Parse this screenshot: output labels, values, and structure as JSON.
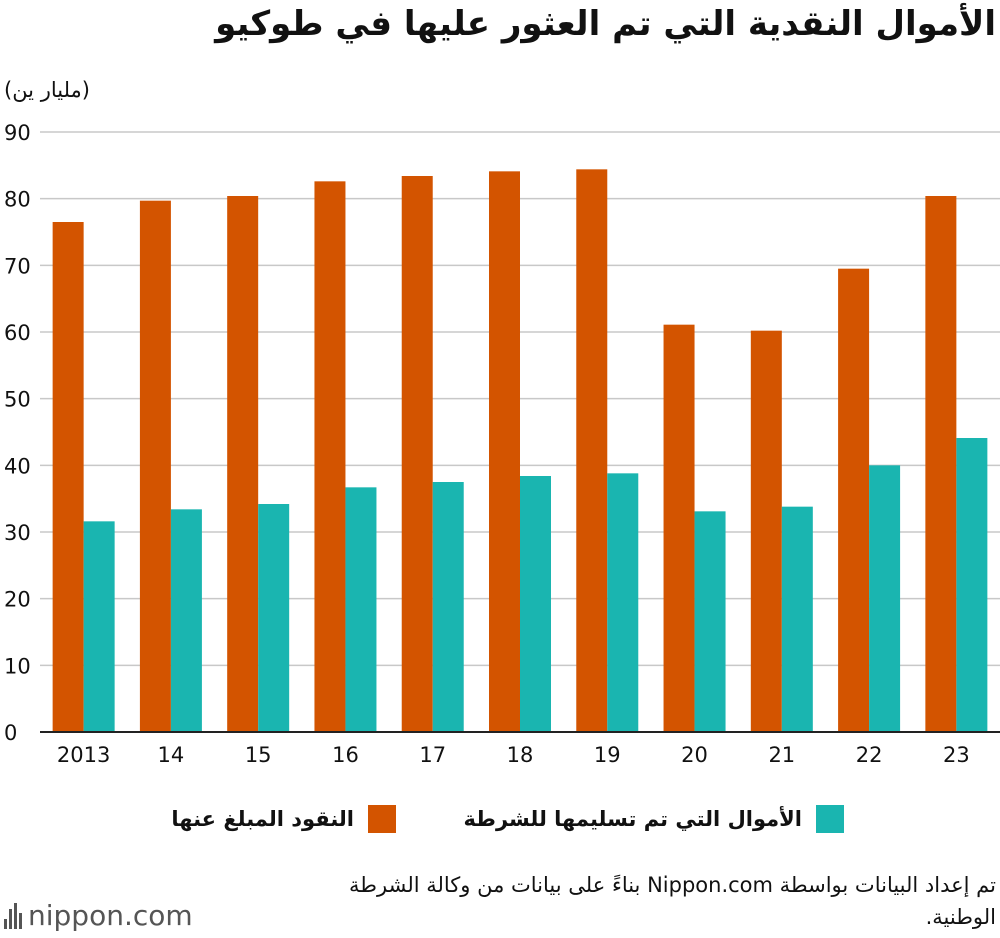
{
  "colors": {
    "reported": "#d35400",
    "handed": "#1ab5b0",
    "grid": "#c8c8c8",
    "axis": "#222222"
  },
  "chart_data": {
    "type": "bar",
    "title": "الأموال النقدية التي تم العثور عليها في طوكيو",
    "ylabel": "(مليار ين)",
    "xlabel": "",
    "ylim": [
      0,
      90
    ],
    "yticks": [
      0,
      10,
      20,
      30,
      40,
      50,
      60,
      70,
      80,
      90
    ],
    "grid": true,
    "legend_position": "bottom",
    "categories": [
      "2013",
      "14",
      "15",
      "16",
      "17",
      "18",
      "19",
      "20",
      "21",
      "22",
      "23"
    ],
    "series": [
      {
        "key": "reported",
        "name": "النقود المبلغ عنها",
        "values": [
          76.5,
          79.7,
          80.4,
          82.6,
          83.4,
          84.1,
          84.4,
          61.1,
          60.2,
          69.5,
          80.4
        ]
      },
      {
        "key": "handed",
        "name": "الأموال التي تم تسليمها للشرطة",
        "values": [
          31.6,
          33.4,
          34.2,
          36.7,
          37.5,
          38.4,
          38.8,
          33.1,
          33.8,
          40.0,
          44.1
        ]
      }
    ]
  },
  "source_note": "تم إعداد البيانات بواسطة Nippon.com بناءً على بيانات من وكالة الشرطة الوطنية.",
  "logo": {
    "text": "nippon.com",
    "icon": "nippon-logo-icon"
  }
}
